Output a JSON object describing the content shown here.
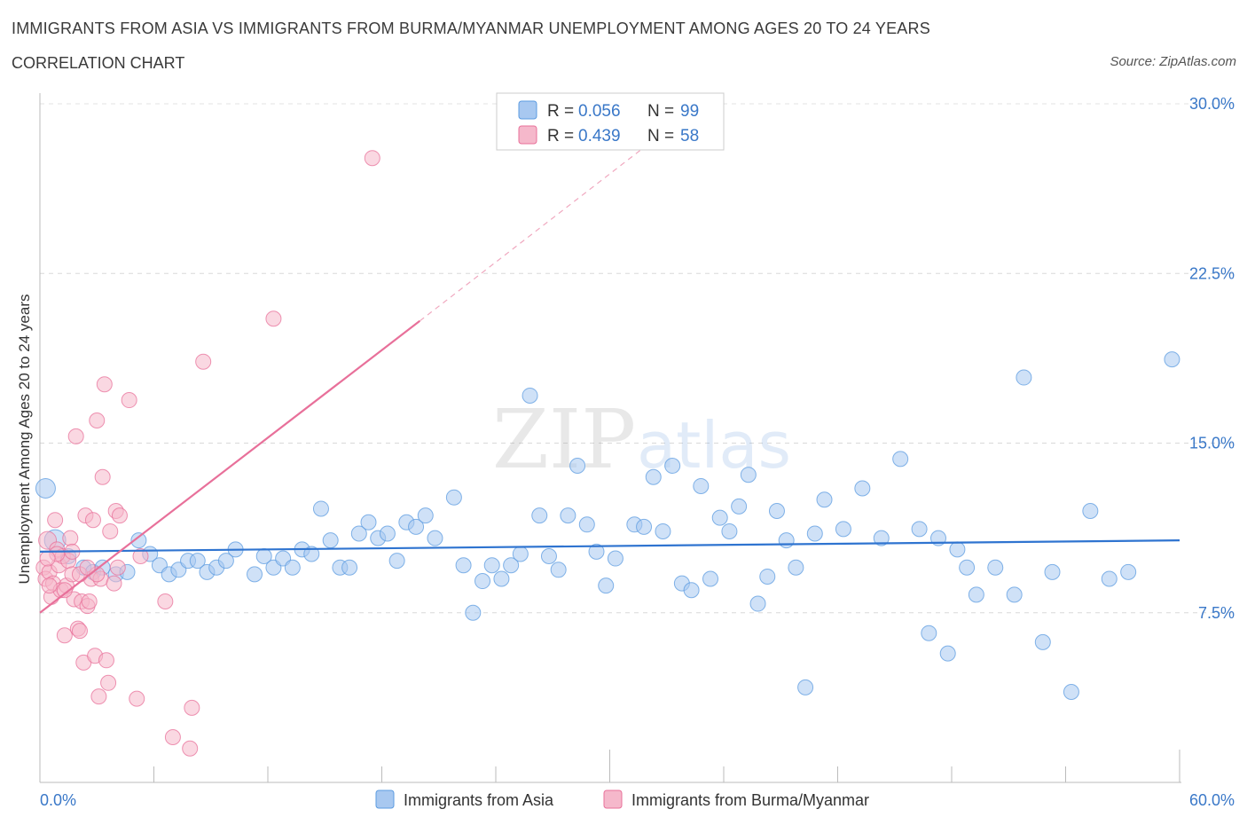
{
  "header": {
    "title": "IMMIGRANTS FROM ASIA VS IMMIGRANTS FROM BURMA/MYANMAR UNEMPLOYMENT AMONG AGES 20 TO 24 YEARS",
    "subtitle": "CORRELATION CHART",
    "source": "Source: ZipAtlas.com"
  },
  "watermark": {
    "zip": "ZIP",
    "atlas": "atlas"
  },
  "legend": {
    "rows": [
      {
        "r_label": "R = ",
        "r_value": "0.056",
        "n_label": "N = ",
        "n_value": "99",
        "color": "#a8c8f0"
      },
      {
        "r_label": "R = ",
        "r_value": "0.439",
        "n_label": "N = ",
        "n_value": "58",
        "color": "#f5b8cb"
      }
    ]
  },
  "bottom_legend": {
    "items": [
      {
        "label": "Immigrants from Asia",
        "color": "#a8c8f0"
      },
      {
        "label": "Immigrants from Burma/Myanmar",
        "color": "#f5b8cb"
      }
    ]
  },
  "chart_data": {
    "type": "scatter",
    "title": "IMMIGRANTS FROM ASIA VS IMMIGRANTS FROM BURMA/MYANMAR UNEMPLOYMENT AMONG AGES 20 TO 24 YEARS",
    "xlabel": "",
    "ylabel": "Unemployment Among Ages 20 to 24 years",
    "xlim": [
      0,
      60
    ],
    "ylim": [
      0,
      30
    ],
    "x_tick_labels": [
      "0.0%",
      "60.0%"
    ],
    "y_ticks": [
      7.5,
      15,
      22.5,
      30
    ],
    "y_tick_labels": [
      "7.5%",
      "15.0%",
      "22.5%",
      "30.0%"
    ],
    "grid": true,
    "series": [
      {
        "name": "Immigrants from Asia",
        "color": "#5b9be0",
        "fill": "#a8c8f0",
        "trend": {
          "x": [
            0,
            60
          ],
          "y": [
            10.2,
            10.7
          ],
          "dashed_to": null
        },
        "points": [
          [
            0.3,
            13.0
          ],
          [
            0.8,
            10.7
          ],
          [
            1.5,
            10.0
          ],
          [
            2.3,
            9.5
          ],
          [
            2.8,
            9.3
          ],
          [
            3.3,
            9.5
          ],
          [
            4.0,
            9.2
          ],
          [
            4.6,
            9.3
          ],
          [
            5.2,
            10.7
          ],
          [
            5.8,
            10.1
          ],
          [
            6.3,
            9.6
          ],
          [
            6.8,
            9.2
          ],
          [
            7.3,
            9.4
          ],
          [
            7.8,
            9.8
          ],
          [
            8.3,
            9.8
          ],
          [
            8.8,
            9.3
          ],
          [
            9.3,
            9.5
          ],
          [
            9.8,
            9.8
          ],
          [
            10.3,
            10.3
          ],
          [
            11.3,
            9.2
          ],
          [
            11.8,
            10.0
          ],
          [
            12.3,
            9.5
          ],
          [
            12.8,
            9.9
          ],
          [
            13.3,
            9.5
          ],
          [
            13.8,
            10.3
          ],
          [
            14.3,
            10.1
          ],
          [
            14.8,
            12.1
          ],
          [
            15.3,
            10.7
          ],
          [
            15.8,
            9.5
          ],
          [
            16.3,
            9.5
          ],
          [
            16.8,
            11.0
          ],
          [
            17.3,
            11.5
          ],
          [
            17.8,
            10.8
          ],
          [
            18.3,
            11.0
          ],
          [
            18.8,
            9.8
          ],
          [
            19.3,
            11.5
          ],
          [
            19.8,
            11.3
          ],
          [
            20.3,
            11.8
          ],
          [
            20.8,
            10.8
          ],
          [
            21.8,
            12.6
          ],
          [
            22.3,
            9.6
          ],
          [
            22.8,
            7.5
          ],
          [
            23.3,
            8.9
          ],
          [
            23.8,
            9.6
          ],
          [
            24.3,
            9.0
          ],
          [
            24.8,
            9.6
          ],
          [
            25.3,
            10.1
          ],
          [
            25.8,
            17.1
          ],
          [
            26.3,
            11.8
          ],
          [
            26.8,
            10.0
          ],
          [
            27.3,
            9.4
          ],
          [
            27.8,
            11.8
          ],
          [
            28.3,
            14.0
          ],
          [
            28.8,
            11.4
          ],
          [
            29.3,
            10.2
          ],
          [
            29.8,
            8.7
          ],
          [
            30.3,
            9.9
          ],
          [
            31.3,
            11.4
          ],
          [
            31.8,
            11.3
          ],
          [
            32.3,
            13.5
          ],
          [
            32.8,
            11.1
          ],
          [
            33.3,
            14.0
          ],
          [
            33.8,
            8.8
          ],
          [
            34.3,
            8.5
          ],
          [
            34.8,
            13.1
          ],
          [
            35.3,
            9.0
          ],
          [
            35.8,
            11.7
          ],
          [
            36.3,
            11.1
          ],
          [
            36.8,
            12.2
          ],
          [
            37.3,
            13.6
          ],
          [
            37.8,
            7.9
          ],
          [
            38.3,
            9.1
          ],
          [
            38.8,
            12.0
          ],
          [
            39.3,
            10.7
          ],
          [
            39.8,
            9.5
          ],
          [
            40.3,
            4.2
          ],
          [
            40.8,
            11.0
          ],
          [
            41.3,
            12.5
          ],
          [
            42.3,
            11.2
          ],
          [
            43.3,
            13.0
          ],
          [
            44.3,
            10.8
          ],
          [
            45.3,
            14.3
          ],
          [
            46.3,
            11.2
          ],
          [
            46.8,
            6.6
          ],
          [
            47.3,
            10.8
          ],
          [
            47.8,
            5.7
          ],
          [
            48.3,
            10.3
          ],
          [
            48.8,
            9.5
          ],
          [
            49.3,
            8.3
          ],
          [
            50.3,
            9.5
          ],
          [
            51.3,
            8.3
          ],
          [
            51.8,
            17.9
          ],
          [
            52.8,
            6.2
          ],
          [
            53.3,
            9.3
          ],
          [
            54.3,
            4.0
          ],
          [
            55.3,
            12.0
          ],
          [
            56.3,
            9.0
          ],
          [
            57.3,
            9.3
          ],
          [
            59.6,
            18.7
          ]
        ]
      },
      {
        "name": "Immigrants from Burma/Myanmar",
        "color": "#e8709a",
        "fill": "#f5b8cb",
        "trend": {
          "x": [
            0,
            20
          ],
          "y": [
            7.5,
            20.4
          ],
          "dashed_to": [
            34,
            29.5
          ]
        },
        "points": [
          [
            0.2,
            9.5
          ],
          [
            0.3,
            9.0
          ],
          [
            0.4,
            10.7
          ],
          [
            0.5,
            9.3
          ],
          [
            0.6,
            8.2
          ],
          [
            0.7,
            8.8
          ],
          [
            0.8,
            11.6
          ],
          [
            0.9,
            10.3
          ],
          [
            1.0,
            9.6
          ],
          [
            1.1,
            8.5
          ],
          [
            1.2,
            10.0
          ],
          [
            1.3,
            6.5
          ],
          [
            1.4,
            8.7
          ],
          [
            1.5,
            9.8
          ],
          [
            1.6,
            10.8
          ],
          [
            1.7,
            9.2
          ],
          [
            1.8,
            8.1
          ],
          [
            1.9,
            15.3
          ],
          [
            2.0,
            6.8
          ],
          [
            2.1,
            6.7
          ],
          [
            2.2,
            8.0
          ],
          [
            2.3,
            5.3
          ],
          [
            2.4,
            11.8
          ],
          [
            2.5,
            7.8
          ],
          [
            2.6,
            8.0
          ],
          [
            2.7,
            9.0
          ],
          [
            2.8,
            11.6
          ],
          [
            2.9,
            5.6
          ],
          [
            3.0,
            16.0
          ],
          [
            3.1,
            3.8
          ],
          [
            3.2,
            9.0
          ],
          [
            3.3,
            13.5
          ],
          [
            3.4,
            17.6
          ],
          [
            3.5,
            5.4
          ],
          [
            3.6,
            4.4
          ],
          [
            3.7,
            11.1
          ],
          [
            3.9,
            8.8
          ],
          [
            4.0,
            12.0
          ],
          [
            4.2,
            11.8
          ],
          [
            4.7,
            16.9
          ],
          [
            5.1,
            3.7
          ],
          [
            5.3,
            10.0
          ],
          [
            6.6,
            8.0
          ],
          [
            7.0,
            2.0
          ],
          [
            7.9,
            1.5
          ],
          [
            8.0,
            3.3
          ],
          [
            8.6,
            18.6
          ],
          [
            12.3,
            20.5
          ],
          [
            17.5,
            27.6
          ],
          [
            0.5,
            8.7
          ],
          [
            1.3,
            8.5
          ],
          [
            2.1,
            9.2
          ],
          [
            3.0,
            9.2
          ],
          [
            0.9,
            10.1
          ],
          [
            1.7,
            10.2
          ],
          [
            2.5,
            9.5
          ],
          [
            4.1,
            9.5
          ],
          [
            0.4,
            9.9
          ]
        ]
      }
    ]
  }
}
